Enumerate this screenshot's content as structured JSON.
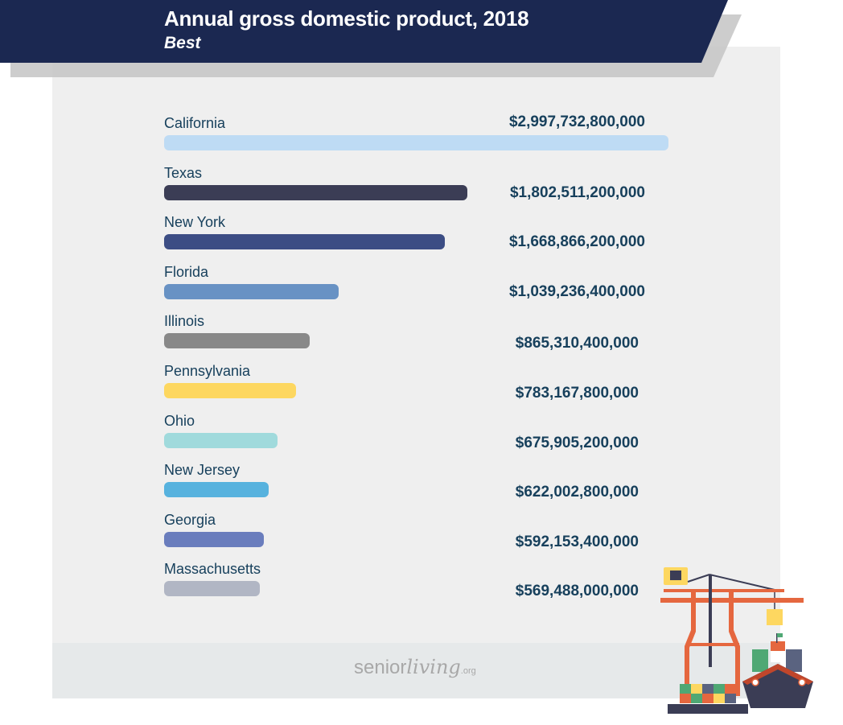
{
  "header": {
    "title": "Annual gross domestic product, 2018",
    "subtitle": "Best",
    "band_color": "#1b2851"
  },
  "footer": {
    "logo_main": "senior",
    "logo_script": "living",
    "logo_suffix": ".org"
  },
  "illustration": {
    "icon": "harbor-crane-cargo-ship-icon"
  },
  "chart_data": {
    "type": "bar",
    "orientation": "horizontal",
    "title": "Annual gross domestic product, 2018",
    "subtitle": "Best",
    "xlabel": "",
    "ylabel": "",
    "grid": false,
    "legend": "none",
    "categories": [
      "California",
      "Texas",
      "New York",
      "Florida",
      "Illinois",
      "Pennsylvania",
      "Ohio",
      "New Jersey",
      "Georgia",
      "Massachusetts"
    ],
    "values": [
      2997732800000,
      1802511200000,
      1668866200000,
      1039236400000,
      865310400000,
      783167800000,
      675905200000,
      622002800000,
      592153400000,
      569488000000
    ],
    "value_labels": [
      "$2,997,732,800,000",
      "$1,802,511,200,000",
      "$1,668,866,200,000",
      "$1,039,236,400,000",
      "$865,310,400,000",
      "$783,167,800,000",
      "$675,905,200,000",
      "$622,002,800,000",
      "$592,153,400,000",
      "$569,488,000,000"
    ],
    "colors": [
      "#bedbf4",
      "#3b3d55",
      "#3c4d84",
      "#6892c4",
      "#888888",
      "#fdd760",
      "#a0dadc",
      "#57b2de",
      "#6a7dbd",
      "#b1b6c4"
    ],
    "bar_fill_fraction": [
      1.0,
      0.648,
      0.608,
      0.564,
      0.493,
      0.467,
      0.446,
      0.411,
      0.403,
      0.382
    ]
  }
}
